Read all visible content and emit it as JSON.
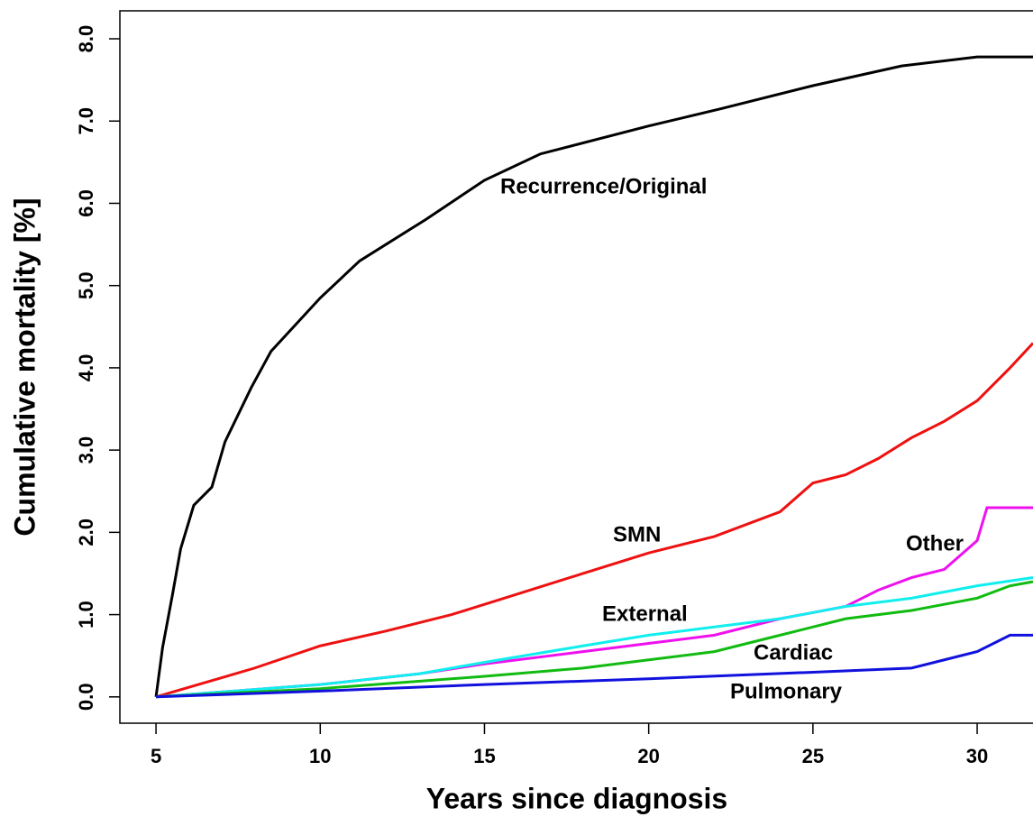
{
  "chart_data": {
    "type": "line",
    "xlabel": "Years since diagnosis",
    "ylabel": "Cumulative mortality [%]",
    "xlim": [
      3.9,
      31.7
    ],
    "ylim": [
      -0.32,
      8.34
    ],
    "xticks": [
      5,
      10,
      15,
      20,
      25,
      30
    ],
    "yticks": [
      {
        "value": 0,
        "label": "0.0"
      },
      {
        "value": 1,
        "label": "1.0"
      },
      {
        "value": 2,
        "label": "2.0"
      },
      {
        "value": 3,
        "label": "3.0"
      },
      {
        "value": 4,
        "label": "4.0"
      },
      {
        "value": 5,
        "label": "5.0"
      },
      {
        "value": 6,
        "label": "6.0"
      },
      {
        "value": 7,
        "label": "7.0"
      },
      {
        "value": 8,
        "label": "8.0"
      }
    ],
    "series": [
      {
        "name": "Recurrence/Original",
        "color": "#000000",
        "x": [
          5,
          5.2,
          5.5,
          5.75,
          6.15,
          6.7,
          7.1,
          7.9,
          8.5,
          10,
          11.2,
          13.2,
          15,
          16.7,
          20,
          22.2,
          25,
          27.7,
          30,
          31.7
        ],
        "values": [
          0,
          0.6,
          1.24,
          1.8,
          2.33,
          2.55,
          3.1,
          3.76,
          4.2,
          4.85,
          5.3,
          5.8,
          6.28,
          6.6,
          6.94,
          7.15,
          7.43,
          7.67,
          7.78,
          7.78
        ]
      },
      {
        "name": "SMN",
        "color": "#ee1111",
        "x": [
          5,
          8,
          10,
          12,
          14,
          16,
          18,
          20,
          22,
          24,
          25,
          26,
          27,
          28,
          29,
          30,
          31,
          31.7
        ],
        "values": [
          0,
          0.35,
          0.62,
          0.8,
          1.0,
          1.25,
          1.5,
          1.75,
          1.95,
          2.25,
          2.6,
          2.7,
          2.9,
          3.15,
          3.35,
          3.6,
          4.0,
          4.3
        ]
      },
      {
        "name": "Other",
        "color": "#ee11ee",
        "x": [
          5,
          10,
          13,
          15,
          18,
          20,
          22,
          24,
          26,
          27,
          28,
          29,
          30,
          30.3,
          31.7
        ],
        "values": [
          0,
          0.15,
          0.28,
          0.4,
          0.55,
          0.65,
          0.75,
          0.95,
          1.1,
          1.3,
          1.45,
          1.55,
          1.9,
          2.3,
          2.3
        ]
      },
      {
        "name": "External",
        "color": "#11eeee",
        "x": [
          5,
          10,
          13,
          15,
          18,
          20,
          22,
          24,
          26,
          28,
          30,
          31.7
        ],
        "values": [
          0,
          0.15,
          0.28,
          0.42,
          0.62,
          0.75,
          0.85,
          0.95,
          1.1,
          1.2,
          1.35,
          1.45
        ]
      },
      {
        "name": "Cardiac",
        "color": "#11bb11",
        "x": [
          5,
          10,
          15,
          18,
          20,
          22,
          24,
          26,
          28,
          30,
          31,
          31.7
        ],
        "values": [
          0,
          0.1,
          0.25,
          0.35,
          0.45,
          0.55,
          0.75,
          0.95,
          1.05,
          1.2,
          1.35,
          1.4
        ]
      },
      {
        "name": "Pulmonary",
        "color": "#1111dd",
        "x": [
          5,
          10,
          15,
          20,
          25,
          28,
          29,
          30,
          31,
          31.7
        ],
        "values": [
          0,
          0.07,
          0.15,
          0.22,
          0.3,
          0.35,
          0.45,
          0.55,
          0.75,
          0.75
        ]
      }
    ]
  }
}
